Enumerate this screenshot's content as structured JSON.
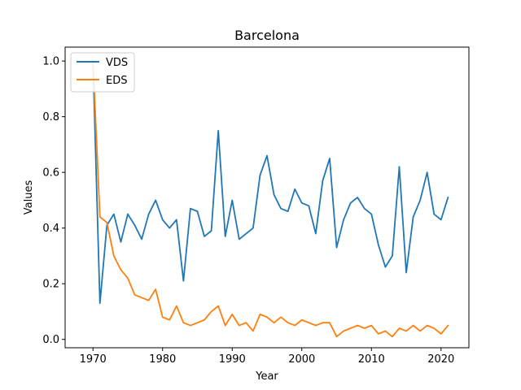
{
  "chart_data": {
    "type": "line",
    "title": "Barcelona",
    "xlabel": "Year",
    "ylabel": "Values",
    "xlim": [
      1966,
      2024
    ],
    "ylim": [
      -0.03,
      1.05
    ],
    "xticks": [
      1970,
      1980,
      1990,
      2000,
      2010,
      2020
    ],
    "yticks": [
      0.0,
      0.2,
      0.4,
      0.6,
      0.8,
      1.0
    ],
    "grid": false,
    "legend_position": "top-left",
    "x": [
      1970,
      1971,
      1972,
      1973,
      1974,
      1975,
      1976,
      1977,
      1978,
      1979,
      1980,
      1981,
      1982,
      1983,
      1984,
      1985,
      1986,
      1987,
      1988,
      1989,
      1990,
      1991,
      1992,
      1993,
      1994,
      1995,
      1996,
      1997,
      1998,
      1999,
      2000,
      2001,
      2002,
      2003,
      2004,
      2005,
      2006,
      2007,
      2008,
      2009,
      2010,
      2011,
      2012,
      2013,
      2014,
      2015,
      2016,
      2017,
      2018,
      2019,
      2020,
      2021
    ],
    "series": [
      {
        "name": "VDS",
        "color": "#1f77b4",
        "values": [
          1.0,
          0.13,
          0.41,
          0.45,
          0.35,
          0.45,
          0.41,
          0.36,
          0.45,
          0.5,
          0.43,
          0.4,
          0.43,
          0.21,
          0.47,
          0.46,
          0.37,
          0.39,
          0.75,
          0.37,
          0.5,
          0.36,
          0.38,
          0.4,
          0.59,
          0.66,
          0.52,
          0.47,
          0.46,
          0.54,
          0.49,
          0.48,
          0.38,
          0.57,
          0.65,
          0.33,
          0.43,
          0.49,
          0.51,
          0.47,
          0.45,
          0.34,
          0.26,
          0.3,
          0.62,
          0.24,
          0.44,
          0.5,
          0.6,
          0.45,
          0.43,
          0.51
        ]
      },
      {
        "name": "EDS",
        "color": "#ff7f0e",
        "values": [
          1.0,
          0.44,
          0.42,
          0.3,
          0.25,
          0.22,
          0.16,
          0.15,
          0.14,
          0.18,
          0.08,
          0.07,
          0.12,
          0.06,
          0.05,
          0.06,
          0.07,
          0.1,
          0.12,
          0.05,
          0.09,
          0.05,
          0.06,
          0.03,
          0.09,
          0.08,
          0.06,
          0.08,
          0.06,
          0.05,
          0.07,
          0.06,
          0.05,
          0.06,
          0.06,
          0.01,
          0.03,
          0.04,
          0.05,
          0.04,
          0.05,
          0.02,
          0.03,
          0.01,
          0.04,
          0.03,
          0.05,
          0.03,
          0.05,
          0.04,
          0.02,
          0.05
        ]
      }
    ]
  }
}
